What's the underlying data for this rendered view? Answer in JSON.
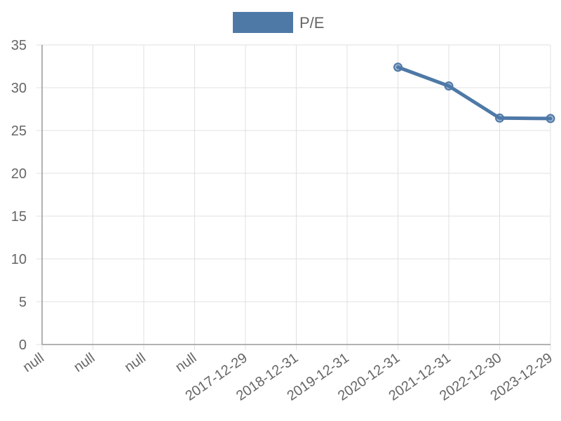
{
  "chart_data": {
    "type": "line",
    "categories": [
      "null",
      "null",
      "null",
      "null",
      "2017-12-29",
      "2018-12-31",
      "2019-12-31",
      "2020-12-31",
      "2021-12-31",
      "2022-12-30",
      "2023-12-29"
    ],
    "series": [
      {
        "name": "P/E",
        "values": [
          null,
          null,
          null,
          null,
          null,
          null,
          null,
          32.4,
          30.2,
          26.45,
          26.4
        ],
        "color": "#4e79a7"
      }
    ],
    "ylim": [
      0,
      35
    ],
    "yticks": [
      0,
      5,
      10,
      15,
      20,
      25,
      30,
      35
    ],
    "grid": true,
    "legend_position": "top-center",
    "colors": {
      "grid": "#e0e0e0",
      "axis": "#999999",
      "text": "#666666"
    }
  }
}
